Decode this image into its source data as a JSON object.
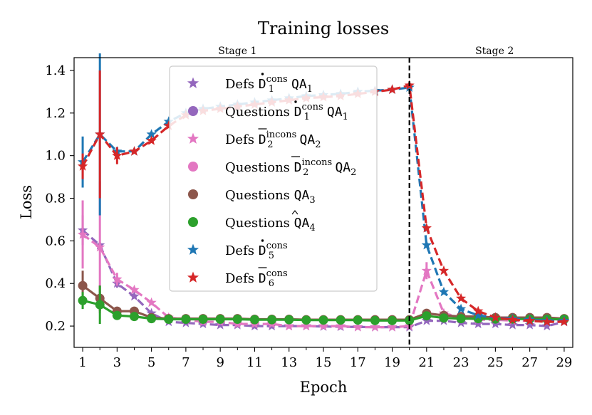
{
  "chart_data": {
    "type": "line",
    "title": "Training losses",
    "xlabel": "Epoch",
    "ylabel": "Loss",
    "xlim": [
      0.5,
      29.5
    ],
    "ylim": [
      0.1,
      1.46
    ],
    "xticks": [
      1,
      3,
      5,
      7,
      9,
      11,
      13,
      15,
      17,
      19,
      21,
      23,
      25,
      27,
      29
    ],
    "xticks_minor": [
      2,
      4,
      6,
      8,
      10,
      12,
      14,
      16,
      18,
      20,
      22,
      24,
      26,
      28
    ],
    "yticks": [
      0.2,
      0.4,
      0.6,
      0.8,
      1.0,
      1.2,
      1.4
    ],
    "ytick_labels": [
      "0.2",
      "0.4",
      "0.6",
      "0.8",
      "1.0",
      "1.2",
      "1.4"
    ],
    "xtick_labels": [
      "1",
      "3",
      "5",
      "7",
      "9",
      "11",
      "13",
      "15",
      "17",
      "19",
      "21",
      "23",
      "25",
      "27",
      "29"
    ],
    "stage_boundary": 20,
    "stages": [
      {
        "name": "Stage 1",
        "center": 10
      },
      {
        "name": "Stage 2",
        "center": 24.95
      }
    ],
    "legend_position": "upper-center",
    "series": [
      {
        "key": "d1",
        "name": "Defs D1 cons QA1",
        "color": "#9467bd",
        "marker": "star",
        "dash": true,
        "x": [
          1,
          2,
          3,
          4,
          5,
          6,
          7,
          8,
          9,
          10,
          11,
          12,
          13,
          14,
          15,
          16,
          17,
          18,
          19,
          20,
          21,
          22,
          23,
          24,
          25,
          26,
          27,
          28,
          29
        ],
        "y": [
          0.65,
          0.58,
          0.4,
          0.34,
          0.26,
          0.22,
          0.215,
          0.21,
          0.205,
          0.205,
          0.2,
          0.2,
          0.2,
          0.2,
          0.198,
          0.197,
          0.196,
          0.195,
          0.195,
          0.195,
          0.225,
          0.225,
          0.215,
          0.21,
          0.21,
          0.205,
          0.205,
          0.2,
          0.22
        ],
        "err": [
          0.07,
          0,
          0.02,
          0,
          0,
          0,
          0,
          0,
          0,
          0,
          0,
          0,
          0,
          0,
          0,
          0,
          0,
          0,
          0,
          0,
          0,
          0,
          0,
          0,
          0,
          0,
          0,
          0,
          0
        ]
      },
      {
        "key": "q1",
        "name": "Questions D1 cons QA1",
        "color": "#9467bd",
        "marker": "circle",
        "dash": false,
        "x": [],
        "y": [],
        "err": []
      },
      {
        "key": "d2",
        "name": "Defs D2 incons QA2",
        "color": "#e377c2",
        "marker": "star",
        "dash": true,
        "x": [
          1,
          2,
          3,
          4,
          5,
          6,
          7,
          8,
          9,
          10,
          11,
          12,
          13,
          14,
          15,
          16,
          17,
          18,
          19,
          20,
          21,
          22,
          23,
          24,
          25,
          26,
          27,
          28,
          29
        ],
        "y": [
          0.63,
          0.57,
          0.42,
          0.37,
          0.31,
          0.24,
          0.23,
          0.22,
          0.22,
          0.21,
          0.21,
          0.21,
          0.2,
          0.2,
          0.2,
          0.2,
          0.195,
          0.195,
          0.195,
          0.2,
          0.46,
          0.26,
          0.24,
          0.23,
          0.23,
          0.225,
          0.225,
          0.22,
          0.225
        ],
        "err": [
          0.16,
          0.31,
          0.03,
          0,
          0,
          0,
          0,
          0,
          0,
          0,
          0,
          0,
          0,
          0,
          0,
          0,
          0,
          0,
          0,
          0,
          0.04,
          0,
          0,
          0,
          0,
          0,
          0,
          0,
          0
        ]
      },
      {
        "key": "q2",
        "name": "Questions D2 incons QA2",
        "color": "#e377c2",
        "marker": "circle",
        "dash": false,
        "x": [],
        "y": [],
        "err": []
      },
      {
        "key": "q3",
        "name": "Questions QA3",
        "color": "#8c564b",
        "marker": "circle",
        "dash": false,
        "x": [
          1,
          2,
          3,
          4,
          5,
          6,
          7,
          8,
          9,
          10,
          11,
          12,
          13,
          14,
          15,
          16,
          17,
          18,
          19,
          20,
          21,
          22,
          23,
          24,
          25,
          26,
          27,
          28,
          29
        ],
        "y": [
          0.39,
          0.33,
          0.27,
          0.27,
          0.24,
          0.235,
          0.235,
          0.235,
          0.235,
          0.235,
          0.232,
          0.232,
          0.232,
          0.23,
          0.23,
          0.23,
          0.23,
          0.23,
          0.23,
          0.23,
          0.26,
          0.25,
          0.245,
          0.245,
          0.24,
          0.24,
          0.24,
          0.24,
          0.235
        ],
        "err": [
          0.07,
          0.06,
          0.02,
          0,
          0,
          0,
          0,
          0,
          0,
          0,
          0,
          0,
          0,
          0,
          0,
          0,
          0,
          0,
          0,
          0,
          0.015,
          0,
          0,
          0,
          0,
          0,
          0,
          0,
          0
        ]
      },
      {
        "key": "q4",
        "name": "Questions QA4 hat",
        "color": "#2ca02c",
        "marker": "circle",
        "dash": false,
        "x": [
          1,
          2,
          3,
          4,
          5,
          6,
          7,
          8,
          9,
          10,
          11,
          12,
          13,
          14,
          15,
          16,
          17,
          18,
          19,
          20,
          21,
          22,
          23,
          24,
          25,
          26,
          27,
          28,
          29
        ],
        "y": [
          0.32,
          0.3,
          0.25,
          0.245,
          0.235,
          0.232,
          0.232,
          0.232,
          0.232,
          0.232,
          0.23,
          0.23,
          0.23,
          0.228,
          0.228,
          0.228,
          0.228,
          0.226,
          0.226,
          0.226,
          0.248,
          0.238,
          0.235,
          0.235,
          0.233,
          0.233,
          0.233,
          0.232,
          0.232
        ],
        "err": [
          0.04,
          0.09,
          0.01,
          0,
          0,
          0,
          0,
          0,
          0,
          0,
          0,
          0,
          0,
          0,
          0,
          0,
          0,
          0,
          0,
          0,
          0,
          0,
          0,
          0,
          0,
          0,
          0,
          0,
          0
        ]
      },
      {
        "key": "d5",
        "name": "Defs D5 cons",
        "color": "#1f77b4",
        "marker": "star",
        "dash": true,
        "x": [
          1,
          2,
          3,
          4,
          5,
          6,
          7,
          8,
          9,
          10,
          11,
          12,
          13,
          14,
          15,
          16,
          17,
          18,
          19,
          20,
          21,
          22,
          23,
          24,
          25,
          26,
          27,
          28,
          29
        ],
        "y": [
          0.97,
          1.1,
          1.02,
          1.02,
          1.1,
          1.16,
          1.2,
          1.22,
          1.23,
          1.24,
          1.25,
          1.26,
          1.27,
          1.28,
          1.285,
          1.29,
          1.3,
          1.305,
          1.31,
          1.32,
          0.58,
          0.36,
          0.28,
          0.25,
          0.24,
          0.235,
          0.23,
          0.225,
          0.225
        ],
        "err": [
          0.12,
          0.38,
          0.02,
          0,
          0,
          0,
          0,
          0,
          0,
          0,
          0,
          0,
          0,
          0,
          0,
          0,
          0,
          0,
          0,
          0,
          0,
          0,
          0,
          0,
          0,
          0,
          0,
          0,
          0
        ]
      },
      {
        "key": "d6",
        "name": "Defs D6 cons",
        "color": "#d62728",
        "marker": "star",
        "dash": true,
        "x": [
          1,
          2,
          3,
          4,
          5,
          6,
          7,
          8,
          9,
          10,
          11,
          12,
          13,
          14,
          15,
          16,
          17,
          18,
          19,
          20,
          21,
          22,
          23,
          24,
          25,
          26,
          27,
          28,
          29
        ],
        "y": [
          0.95,
          1.1,
          1.0,
          1.02,
          1.07,
          1.14,
          1.19,
          1.21,
          1.22,
          1.23,
          1.24,
          1.25,
          1.26,
          1.27,
          1.275,
          1.28,
          1.29,
          1.3,
          1.31,
          1.33,
          0.66,
          0.46,
          0.33,
          0.27,
          0.24,
          0.23,
          0.225,
          0.22,
          0.22
        ],
        "err": [
          0.06,
          0.3,
          0.04,
          0,
          0,
          0,
          0,
          0,
          0,
          0,
          0,
          0,
          0,
          0,
          0,
          0,
          0,
          0,
          0,
          0,
          0,
          0,
          0,
          0,
          0,
          0,
          0,
          0,
          0
        ]
      }
    ]
  },
  "legend": [
    {
      "key": "d1",
      "label": "Defs ",
      "sym": "D",
      "acc": "dot",
      "sub": "1",
      "sup": "cons",
      "tail": "QA",
      "tsub": "1"
    },
    {
      "key": "q1",
      "label": "Questions ",
      "sym": "D",
      "acc": "dot",
      "sub": "1",
      "sup": "cons",
      "tail": "QA",
      "tsub": "1"
    },
    {
      "key": "d2",
      "label": "Defs ",
      "sym": "D",
      "acc": "bar",
      "sub": "2",
      "sup": "incons",
      "tail": "QA",
      "tsub": "2"
    },
    {
      "key": "q2",
      "label": "Questions ",
      "sym": "D",
      "acc": "bar",
      "sub": "2",
      "sup": "incons",
      "tail": "QA",
      "tsub": "2"
    },
    {
      "key": "q3",
      "label": "Questions ",
      "sym": "",
      "acc": "",
      "sub": "",
      "sup": "",
      "tail": "QA",
      "tsub": "3"
    },
    {
      "key": "q4",
      "label": "Questions ",
      "sym": "",
      "acc": "hat",
      "sub": "",
      "sup": "",
      "tail": "QA",
      "tsub": "4"
    },
    {
      "key": "d5",
      "label": "Defs ",
      "sym": "D",
      "acc": "dot",
      "sub": "5",
      "sup": "cons",
      "tail": "",
      "tsub": ""
    },
    {
      "key": "d6",
      "label": "Defs ",
      "sym": "D",
      "acc": "bar",
      "sub": "6",
      "sup": "cons",
      "tail": "",
      "tsub": ""
    }
  ]
}
